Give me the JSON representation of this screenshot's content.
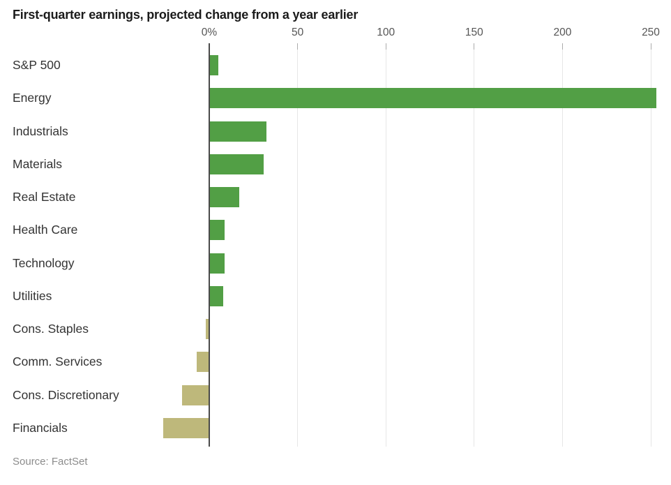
{
  "chart_data": {
    "type": "bar",
    "orientation": "horizontal",
    "title": "First-quarter earnings, projected change from a year earlier",
    "categories": [
      "S&P 500",
      "Energy",
      "Industrials",
      "Materials",
      "Real Estate",
      "Health Care",
      "Technology",
      "Utilities",
      "Cons. Staples",
      "Comm. Services",
      "Cons. Discretionary",
      "Financials"
    ],
    "values": [
      4.7,
      252.6,
      31.9,
      30.5,
      16.7,
      8.4,
      8.2,
      7.7,
      -1.5,
      -6.7,
      -15.1,
      -25.7
    ],
    "unit": "percent",
    "x_ticks": [
      {
        "value": 0,
        "label": "0%"
      },
      {
        "value": 50,
        "label": "50"
      },
      {
        "value": 100,
        "label": "100"
      },
      {
        "value": 150,
        "label": "150"
      },
      {
        "value": 200,
        "label": "200"
      },
      {
        "value": 250,
        "label": "250"
      }
    ],
    "xlim": [
      -30,
      260
    ],
    "xlabel": "",
    "ylabel": "",
    "grid": true,
    "legend": false,
    "colors": {
      "positive_bar": "#529f45",
      "negative_bar": "#beb87b",
      "gridline": "#e6e6e6",
      "tick_mark": "#ababab",
      "zero_axis": "#4a4a4a"
    }
  },
  "footer": {
    "source": "Source: FactSet"
  }
}
